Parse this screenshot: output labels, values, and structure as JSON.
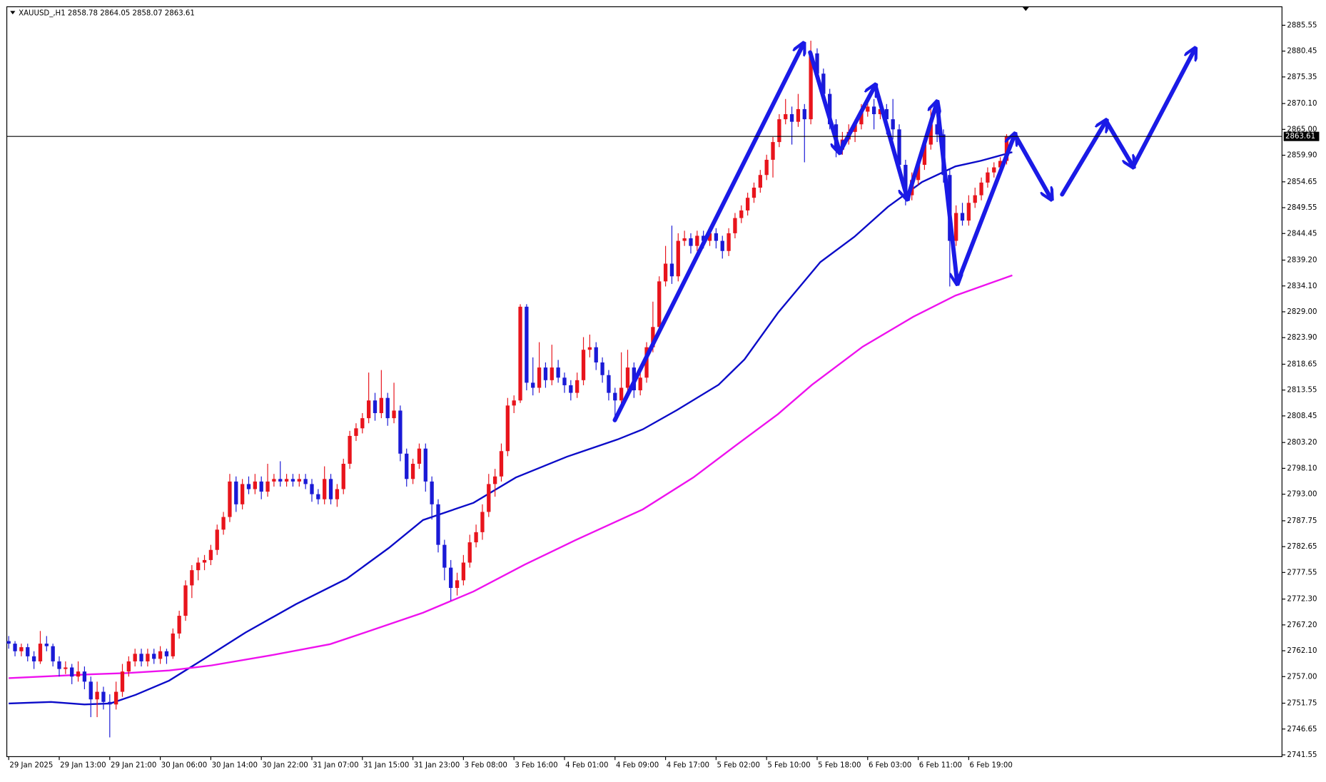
{
  "chart_data": {
    "type": "candlestick",
    "title": "XAUUSD_,H1  2858.78 2864.05 2858.07 2863.61",
    "up_color": "#e8141c",
    "down_color": "#1a1ad6",
    "current_price": 2863.61,
    "xlim": [
      -0.3,
      201.6
    ],
    "ylim": [
      2741.2,
      2889.2
    ],
    "yticks": [
      2885.55,
      2880.45,
      2875.35,
      {
        "value": 2870.1,
        "label": "2870.10"
      },
      {
        "value": 2865,
        "label": "2865.00"
      },
      {
        "value": 2859.9,
        "label": "2859.90"
      },
      2854.65,
      2849.55,
      2844.45,
      {
        "value": 2839.2,
        "label": "2839.20"
      },
      {
        "value": 2834.1,
        "label": "2834.10"
      },
      {
        "value": 2829,
        "label": "2829.00"
      },
      {
        "value": 2823.9,
        "label": "2823.90"
      },
      2818.65,
      2813.55,
      2808.45,
      {
        "value": 2803.2,
        "label": "2803.20"
      },
      {
        "value": 2798.1,
        "label": "2798.10"
      },
      {
        "value": 2793,
        "label": "2793.00"
      },
      2787.75,
      2782.65,
      2777.55,
      {
        "value": 2772.3,
        "label": "2772.30"
      },
      {
        "value": 2767.2,
        "label": "2767.20"
      },
      {
        "value": 2762.1,
        "label": "2762.10"
      },
      {
        "value": 2757,
        "label": "2757.00"
      },
      2751.75,
      2746.65,
      2741.55
    ],
    "xticks": [
      {
        "value": 0,
        "label": "29 Jan 2025"
      },
      {
        "value": 8,
        "label": "29 Jan 13:00"
      },
      {
        "value": 16,
        "label": "29 Jan 21:00"
      },
      {
        "value": 24,
        "label": "30 Jan 06:00"
      },
      {
        "value": 32,
        "label": "30 Jan 14:00"
      },
      {
        "value": 40,
        "label": "30 Jan 22:00"
      },
      {
        "value": 48,
        "label": "31 Jan 07:00"
      },
      {
        "value": 56,
        "label": "31 Jan 15:00"
      },
      {
        "value": 64,
        "label": "31 Jan 23:00"
      },
      {
        "value": 72,
        "label": "3 Feb 08:00"
      },
      {
        "value": 80,
        "label": "3 Feb 16:00"
      },
      {
        "value": 88,
        "label": "4 Feb 01:00"
      },
      {
        "value": 96,
        "label": "4 Feb 09:00"
      },
      {
        "value": 104,
        "label": "4 Feb 17:00"
      },
      {
        "value": 112,
        "label": "5 Feb 02:00"
      },
      {
        "value": 120,
        "label": "5 Feb 10:00"
      },
      {
        "value": 128,
        "label": "5 Feb 18:00"
      },
      {
        "value": 136,
        "label": "6 Feb 03:00"
      },
      {
        "value": 144,
        "label": "6 Feb 11:00"
      },
      {
        "value": 152,
        "label": "6 Feb 19:00"
      }
    ],
    "candles": [
      [
        2764,
        2765,
        2762.5,
        2763.5
      ],
      [
        2763.5,
        2764,
        2761,
        2762
      ],
      [
        2762,
        2763.5,
        2761,
        2762.8
      ],
      [
        2762.8,
        2763.5,
        2760,
        2761
      ],
      [
        2761,
        2762,
        2758.5,
        2760
      ],
      [
        2760,
        2766,
        2759.5,
        2763.5
      ],
      [
        2763.5,
        2765,
        2762,
        2763
      ],
      [
        2763,
        2763.5,
        2759,
        2760
      ],
      [
        2760,
        2761,
        2757,
        2758.5
      ],
      [
        2758.5,
        2760,
        2757.5,
        2758.8
      ],
      [
        2758.8,
        2759.5,
        2755.5,
        2757
      ],
      [
        2757,
        2760,
        2756,
        2758
      ],
      [
        2758,
        2759,
        2754.5,
        2756
      ],
      [
        2756,
        2757,
        2749,
        2752.5
      ],
      [
        2752.5,
        2756,
        2749,
        2754
      ],
      [
        2754,
        2755,
        2750.5,
        2752
      ],
      [
        2752,
        2753.5,
        2745,
        2751.5
      ],
      [
        2751.5,
        2756,
        2750.5,
        2754
      ],
      [
        2754,
        2759.5,
        2753,
        2758
      ],
      [
        2758,
        2761,
        2757,
        2760
      ],
      [
        2760,
        2762.5,
        2759,
        2761.5
      ],
      [
        2761.5,
        2762.5,
        2759,
        2760
      ],
      [
        2760,
        2762.5,
        2759,
        2761.5
      ],
      [
        2761.5,
        2762.5,
        2759.5,
        2760.5
      ],
      [
        2760.5,
        2763,
        2759.5,
        2762
      ],
      [
        2762,
        2762.5,
        2759.5,
        2761
      ],
      [
        2761,
        2766.5,
        2760.5,
        2765.5
      ],
      [
        2765.5,
        2770,
        2764.5,
        2769
      ],
      [
        2769,
        2776,
        2768,
        2775
      ],
      [
        2775,
        2779,
        2772.5,
        2778
      ],
      [
        2778,
        2780.5,
        2776,
        2779.5
      ],
      [
        2779.5,
        2781,
        2778,
        2780
      ],
      [
        2780,
        2783,
        2779,
        2782
      ],
      [
        2782,
        2787,
        2781,
        2786
      ],
      [
        2786,
        2789.5,
        2785,
        2788.5
      ],
      [
        2788.5,
        2797,
        2787.5,
        2795.5
      ],
      [
        2795.5,
        2796.5,
        2789.5,
        2791
      ],
      [
        2791,
        2796,
        2790,
        2795
      ],
      [
        2795,
        2796.5,
        2793,
        2794
      ],
      [
        2794,
        2797,
        2793,
        2795.5
      ],
      [
        2795.5,
        2796.5,
        2792,
        2793.5
      ],
      [
        2793.5,
        2799,
        2792.5,
        2795.5
      ],
      [
        2795.5,
        2797,
        2794.5,
        2796
      ],
      [
        2796,
        2799.5,
        2794.5,
        2795.5
      ],
      [
        2795.5,
        2797,
        2794.5,
        2796
      ],
      [
        2796,
        2797,
        2794.5,
        2795.5
      ],
      [
        2795.5,
        2797,
        2794.5,
        2796
      ],
      [
        2796,
        2797,
        2794,
        2795
      ],
      [
        2795,
        2796,
        2791.5,
        2793
      ],
      [
        2793,
        2794,
        2791,
        2792
      ],
      [
        2792,
        2798.5,
        2791,
        2796
      ],
      [
        2796,
        2797,
        2791,
        2792
      ],
      [
        2792,
        2795,
        2790.5,
        2794
      ],
      [
        2794,
        2800,
        2793,
        2799
      ],
      [
        2799,
        2805.5,
        2798,
        2804.5
      ],
      [
        2804.5,
        2807,
        2803.5,
        2806
      ],
      [
        2806,
        2809,
        2805,
        2808
      ],
      [
        2808,
        2817,
        2807,
        2811.5
      ],
      [
        2811.5,
        2813,
        2807.5,
        2809
      ],
      [
        2809,
        2817.5,
        2808,
        2812
      ],
      [
        2812,
        2813,
        2806.5,
        2808
      ],
      [
        2808,
        2815,
        2807,
        2809.5
      ],
      [
        2809.5,
        2810.5,
        2799.5,
        2801
      ],
      [
        2801,
        2802,
        2794.5,
        2796
      ],
      [
        2796,
        2800,
        2795,
        2799
      ],
      [
        2799,
        2803,
        2798,
        2802
      ],
      [
        2802,
        2803,
        2793.5,
        2795.5
      ],
      [
        2795.5,
        2796.5,
        2788,
        2791
      ],
      [
        2791,
        2792,
        2781.5,
        2783
      ],
      [
        2783,
        2784,
        2776,
        2778.5
      ],
      [
        2778.5,
        2780,
        2772,
        2774.5
      ],
      [
        2774.5,
        2777.5,
        2773,
        2776
      ],
      [
        2776,
        2781,
        2775,
        2779.5
      ],
      [
        2779.5,
        2785,
        2778.5,
        2783.5
      ],
      [
        2783.5,
        2787,
        2782.5,
        2785.5
      ],
      [
        2785.5,
        2791,
        2784,
        2789.5
      ],
      [
        2789.5,
        2797,
        2788.5,
        2795
      ],
      [
        2795,
        2798,
        2792.5,
        2796.5
      ],
      [
        2796.5,
        2803,
        2795.5,
        2801.5
      ],
      [
        2801.5,
        2812,
        2800.5,
        2810.5
      ],
      [
        2810.5,
        2812.5,
        2809,
        2811.5
      ],
      [
        2811.5,
        2830.5,
        2811,
        2830
      ],
      [
        2830,
        2830.5,
        2813.5,
        2815
      ],
      [
        2815,
        2820,
        2812.5,
        2814
      ],
      [
        2814,
        2823,
        2813,
        2818
      ],
      [
        2818,
        2819,
        2814,
        2815.5
      ],
      [
        2815.5,
        2822.5,
        2814.5,
        2818
      ],
      [
        2818,
        2819.5,
        2815,
        2816
      ],
      [
        2816,
        2817,
        2813,
        2814.5
      ],
      [
        2814.5,
        2815.5,
        2811.5,
        2813
      ],
      [
        2813,
        2817,
        2812,
        2815.5
      ],
      [
        2815.5,
        2824,
        2814.5,
        2821.5
      ],
      [
        2821.5,
        2824.5,
        2820,
        2822
      ],
      [
        2822,
        2823,
        2817.5,
        2819
      ],
      [
        2819,
        2820,
        2815,
        2816.5
      ],
      [
        2816.5,
        2817.5,
        2811.5,
        2813
      ],
      [
        2813,
        2814,
        2808,
        2811.5
      ],
      [
        2811.5,
        2821,
        2810.5,
        2814
      ],
      [
        2814,
        2821.5,
        2813,
        2818
      ],
      [
        2818,
        2819,
        2812,
        2813.5
      ],
      [
        2813.5,
        2817.5,
        2812.5,
        2816
      ],
      [
        2816,
        2823,
        2815,
        2822
      ],
      [
        2822,
        2831,
        2821,
        2826
      ],
      [
        2826,
        2836,
        2825,
        2835
      ],
      [
        2835,
        2842,
        2834,
        2838.5
      ],
      [
        2838.5,
        2846,
        2834.5,
        2836
      ],
      [
        2836,
        2844.5,
        2835,
        2843
      ],
      [
        2843,
        2845,
        2842,
        2843.5
      ],
      [
        2843.5,
        2844.5,
        2840.5,
        2842
      ],
      [
        2842,
        2845,
        2841,
        2844
      ],
      [
        2844,
        2845,
        2841.5,
        2843
      ],
      [
        2843,
        2845.5,
        2842,
        2844.5
      ],
      [
        2844.5,
        2845.5,
        2841.5,
        2843
      ],
      [
        2843,
        2844,
        2839.5,
        2841
      ],
      [
        2841,
        2845.5,
        2840,
        2844.5
      ],
      [
        2844.5,
        2848.5,
        2843.5,
        2847.5
      ],
      [
        2847.5,
        2850,
        2846.5,
        2849
      ],
      [
        2849,
        2852.5,
        2848,
        2851.5
      ],
      [
        2851.5,
        2854.5,
        2850.5,
        2853.5
      ],
      [
        2853.5,
        2857,
        2852.5,
        2856
      ],
      [
        2856,
        2860,
        2855,
        2859
      ],
      [
        2859,
        2863.5,
        2855.5,
        2862.5
      ],
      [
        2862.5,
        2868,
        2861.5,
        2867
      ],
      [
        2867,
        2871,
        2866,
        2868
      ],
      [
        2868,
        2869.5,
        2862,
        2866.5
      ],
      [
        2866.5,
        2872,
        2865.5,
        2869
      ],
      [
        2869,
        2870,
        2858.5,
        2867
      ],
      [
        2867,
        2882.5,
        2866,
        2880
      ],
      [
        2880,
        2881,
        2874.5,
        2876
      ],
      [
        2876,
        2877,
        2871,
        2872
      ],
      [
        2872,
        2873,
        2865,
        2866
      ],
      [
        2866,
        2867,
        2859.5,
        2861
      ],
      [
        2861,
        2864.5,
        2860,
        2863
      ],
      [
        2863,
        2866,
        2862,
        2864.5
      ],
      [
        2864.5,
        2867,
        2862.5,
        2866
      ],
      [
        2866,
        2870,
        2865,
        2868.5
      ],
      [
        2868.5,
        2871,
        2867.5,
        2869.5
      ],
      [
        2869.5,
        2871,
        2865,
        2868
      ],
      [
        2868,
        2871.5,
        2867,
        2869
      ],
      [
        2869,
        2870,
        2864,
        2867
      ],
      [
        2867,
        2871,
        2863,
        2865
      ],
      [
        2865,
        2866,
        2856.5,
        2858
      ],
      [
        2858,
        2859,
        2850,
        2852
      ],
      [
        2852,
        2856.5,
        2851,
        2855
      ],
      [
        2855,
        2859,
        2854,
        2858
      ],
      [
        2858,
        2863,
        2857,
        2862
      ],
      [
        2862,
        2869,
        2861,
        2866
      ],
      [
        2866,
        2867.5,
        2862.5,
        2864
      ],
      [
        2864,
        2865,
        2854.5,
        2856
      ],
      [
        2856,
        2857,
        2834,
        2843
      ],
      [
        2843,
        2850,
        2842,
        2848.5
      ],
      [
        2848.5,
        2850.5,
        2846,
        2847
      ],
      [
        2847,
        2852,
        2846,
        2850.5
      ],
      [
        2850.5,
        2853.5,
        2849.5,
        2852
      ],
      [
        2852,
        2855.5,
        2851,
        2854.5
      ],
      [
        2854.5,
        2857.5,
        2853.5,
        2856.5
      ],
      [
        2856.5,
        2858.5,
        2855.5,
        2857.5
      ],
      [
        2857.5,
        2859.5,
        2856.5,
        2858.78
      ],
      [
        2858.78,
        2864.05,
        2858.07,
        2863.61
      ]
    ],
    "ma_lines": [
      {
        "color": "#0b0bc8",
        "x": [
          0,
          6.7,
          12,
          16.1,
          20.1,
          25.4,
          30.8,
          37.5,
          45.5,
          53.5,
          60.2,
          65.6,
          73.6,
          80.3,
          88.4,
          96.4,
          100.4,
          105.8,
          112.4,
          116.5,
          121.8,
          128.5,
          133.9,
          139.2,
          144.6,
          149.9,
          153.9,
          158.9
        ],
        "values": [
          2751.7,
          2752,
          2751.5,
          2751.7,
          2753.4,
          2756.2,
          2760.4,
          2765.7,
          2771.3,
          2776.3,
          2782.4,
          2787.9,
          2791.3,
          2796.3,
          2800.4,
          2803.8,
          2805.8,
          2809.6,
          2814.6,
          2819.6,
          2828.8,
          2838.8,
          2843.8,
          2849.7,
          2854.6,
          2857.7,
          2858.8,
          2860.5
        ]
      },
      {
        "color": "#ee11ee",
        "x": [
          0,
          12,
          18.7,
          25.4,
          32.1,
          41.5,
          50.9,
          57.6,
          65.6,
          73.6,
          81.7,
          89.7,
          100.4,
          108.4,
          115.1,
          121.8,
          127.2,
          135.2,
          143.2,
          149.9,
          158.9
        ],
        "values": [
          2756.7,
          2757.4,
          2757.7,
          2758.2,
          2759.2,
          2761.2,
          2763.4,
          2766.2,
          2769.6,
          2773.8,
          2779.1,
          2783.9,
          2790,
          2796.3,
          2802.6,
          2808.8,
          2814.6,
          2822.1,
          2828,
          2832.2,
          2836.2
        ]
      }
    ]
  }
}
